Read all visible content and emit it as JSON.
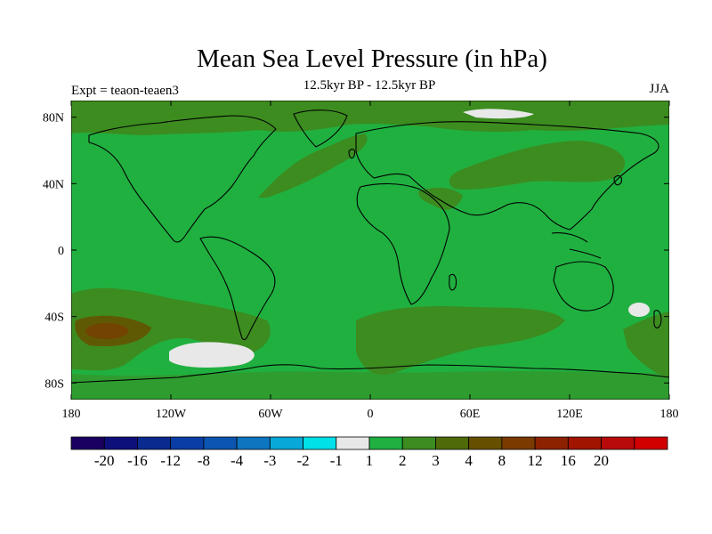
{
  "title": "Mean Sea Level Pressure (in hPa)",
  "subtitle": "12.5kyr BP - 12.5kyr BP",
  "expt_label": "Expt = teaon-teaen3",
  "season": "JJA",
  "map": {
    "lon_range": [
      -180,
      180
    ],
    "lat_range": [
      -90,
      90
    ],
    "x_ticks": [
      {
        "value": -180,
        "label": "180"
      },
      {
        "value": -120,
        "label": "120W"
      },
      {
        "value": -60,
        "label": "60W"
      },
      {
        "value": 0,
        "label": "0"
      },
      {
        "value": 60,
        "label": "60E"
      },
      {
        "value": 120,
        "label": "120E"
      },
      {
        "value": 180,
        "label": "180"
      }
    ],
    "y_ticks": [
      {
        "value": 80,
        "label": "80N"
      },
      {
        "value": 40,
        "label": "40N"
      },
      {
        "value": 0,
        "label": "0"
      },
      {
        "value": -40,
        "label": "40S"
      },
      {
        "value": -80,
        "label": "80S"
      }
    ],
    "background_level_color": "#20b040"
  },
  "colorbar": {
    "colors": [
      "#1a0060",
      "#0d0f7a",
      "#0a2a90",
      "#0a3ea6",
      "#0c55b0",
      "#0e75c0",
      "#08a8d8",
      "#00e0e8",
      "#e8e8e8",
      "#20b040",
      "#3c8c20",
      "#4f6a08",
      "#665000",
      "#7a3a00",
      "#8c2200",
      "#a01400",
      "#b80a0a",
      "#d00000"
    ],
    "labels": [
      "-20",
      "-16",
      "-12",
      "-8",
      "-4",
      "-3",
      "-2",
      "-1",
      "1",
      "2",
      "3",
      "4",
      "8",
      "12",
      "16",
      "20"
    ]
  },
  "colors": {
    "level_1_2": "#20b040",
    "level_2_3": "#3c8c20",
    "level_3_4": "#4f6a08",
    "level_4_8": "#665000",
    "level_8_12": "#7a3a00",
    "level_neg1_1": "#e8e8e8"
  }
}
